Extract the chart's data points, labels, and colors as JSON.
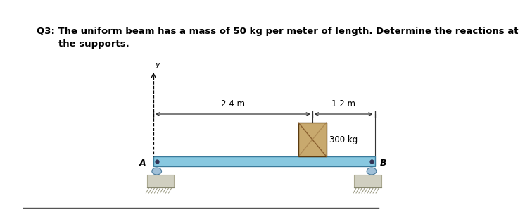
{
  "title_line1": "Q3: The uniform beam has a mass of 50 kg per meter of length. Determine the reactions at",
  "title_line2": "the supports.",
  "title_fontsize": 9.5,
  "bg_color": "#ffffff",
  "beam_color": "#88c8e0",
  "beam_edge_color": "#3a7a9a",
  "box_color": "#c8a96e",
  "box_edge_color": "#5a3a10",
  "box_diag_color": "#8a6030",
  "support_A_circle_color": "#a0c0d8",
  "support_A_ground_color": "#d0cfc0",
  "support_B_circle_color": "#a0c0d8",
  "support_B_ground_color": "#d0cfc0",
  "dim_24": "2.4 m",
  "dim_12": "1.2 m",
  "label_load": "300 kg",
  "label_A": "A",
  "label_B": "B",
  "label_y": "y",
  "bottom_line_color": "#555555"
}
